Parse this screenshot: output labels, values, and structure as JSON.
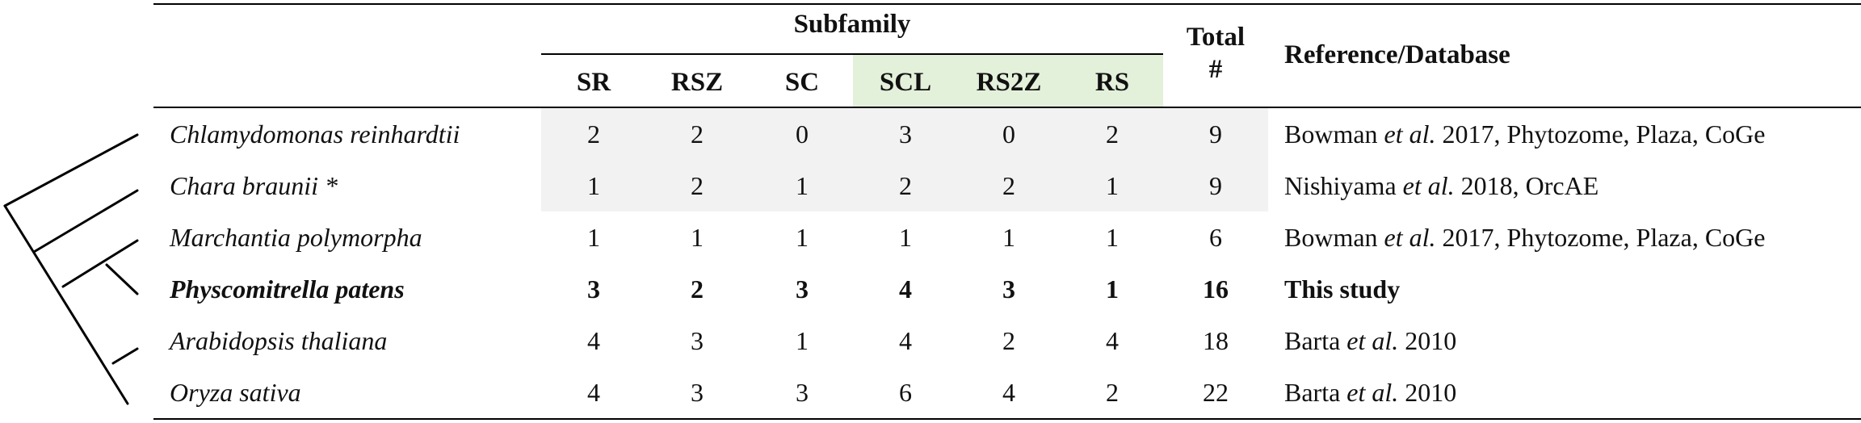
{
  "header": {
    "subfamily": "Subfamily",
    "total_line1": "Total",
    "total_line2": "#",
    "reference": "Reference/Database",
    "columns": [
      "SR",
      "RSZ",
      "SC",
      "SCL",
      "RS2Z",
      "RS"
    ]
  },
  "rows": [
    {
      "species": "Chlamydomonas reinhardtii",
      "values": [
        "2",
        "2",
        "0",
        "3",
        "0",
        "2"
      ],
      "total": "9",
      "ref": {
        "author": "Bowman ",
        "etal": "et al.",
        "rest": " 2017, Phytozome, Plaza, CoGe"
      }
    },
    {
      "species": "Chara braunii *",
      "values": [
        "1",
        "2",
        "1",
        "2",
        "2",
        "1"
      ],
      "total": "9",
      "ref": {
        "author": "Nishiyama ",
        "etal": "et al.",
        "rest": " 2018, OrcAE"
      }
    },
    {
      "species": "Marchantia polymorpha",
      "values": [
        "1",
        "1",
        "1",
        "1",
        "1",
        "1"
      ],
      "total": "6",
      "ref": {
        "author": "Bowman ",
        "etal": "et al.",
        "rest": " 2017, Phytozome, Plaza, CoGe"
      }
    },
    {
      "species": "Physcomitrella patens",
      "values": [
        "3",
        "2",
        "3",
        "4",
        "3",
        "1"
      ],
      "total": "16",
      "ref": {
        "author": "This study",
        "etal": "",
        "rest": ""
      }
    },
    {
      "species": "Arabidopsis thaliana",
      "values": [
        "4",
        "3",
        "1",
        "4",
        "2",
        "4"
      ],
      "total": "18",
      "ref": {
        "author": "Barta ",
        "etal": "et al.",
        "rest": " 2010"
      }
    },
    {
      "species": "Oryza sativa",
      "values": [
        "4",
        "3",
        "3",
        "6",
        "4",
        "2"
      ],
      "total": "22",
      "ref": {
        "author": "Barta ",
        "etal": "et al.",
        "rest": " 2010"
      }
    }
  ],
  "colors": {
    "gray_shade": "#f2f2f2",
    "green_shade": "#e3f0da"
  }
}
